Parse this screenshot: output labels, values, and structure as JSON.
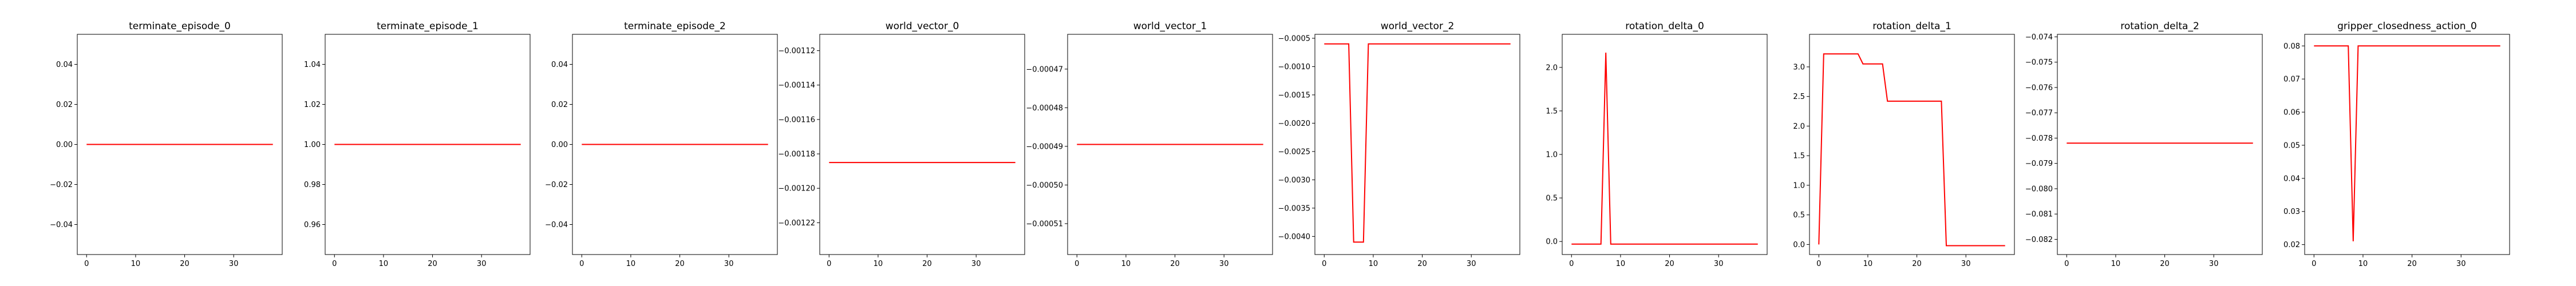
{
  "figure": {
    "line_color": "#ff0000",
    "axis_color": "#000000",
    "background": "#ffffff"
  },
  "chart_data": [
    {
      "type": "line",
      "title": "terminate_episode_0",
      "xlim": [
        -1.9,
        39.9
      ],
      "ylim": [
        -0.055,
        0.055
      ],
      "xticks": [
        0,
        10,
        20,
        30
      ],
      "xticklabels": [
        "0",
        "10",
        "20",
        "30"
      ],
      "yticks": [
        -0.04,
        -0.02,
        0.0,
        0.02,
        0.04
      ],
      "yticklabels": [
        "−0.04",
        "−0.02",
        "0.00",
        "0.02",
        "0.04"
      ],
      "x": [
        0,
        38
      ],
      "y": [
        0,
        0
      ]
    },
    {
      "type": "line",
      "title": "terminate_episode_1",
      "xlim": [
        -1.9,
        39.9
      ],
      "ylim": [
        0.945,
        1.055
      ],
      "xticks": [
        0,
        10,
        20,
        30
      ],
      "xticklabels": [
        "0",
        "10",
        "20",
        "30"
      ],
      "yticks": [
        0.96,
        0.98,
        1.0,
        1.02,
        1.04
      ],
      "yticklabels": [
        "0.96",
        "0.98",
        "1.00",
        "1.02",
        "1.04"
      ],
      "x": [
        0,
        38
      ],
      "y": [
        1,
        1
      ]
    },
    {
      "type": "line",
      "title": "terminate_episode_2",
      "xlim": [
        -1.9,
        39.9
      ],
      "ylim": [
        -0.055,
        0.055
      ],
      "xticks": [
        0,
        10,
        20,
        30
      ],
      "xticklabels": [
        "0",
        "10",
        "20",
        "30"
      ],
      "yticks": [
        -0.04,
        -0.02,
        0.0,
        0.02,
        0.04
      ],
      "yticklabels": [
        "−0.04",
        "−0.02",
        "0.00",
        "0.02",
        "0.04"
      ],
      "x": [
        0,
        38
      ],
      "y": [
        0,
        0
      ]
    },
    {
      "type": "line",
      "title": "world_vector_0",
      "xlim": [
        -1.9,
        39.9
      ],
      "ylim": [
        -0.0012385,
        -0.0011105
      ],
      "xticks": [
        0,
        10,
        20,
        30
      ],
      "xticklabels": [
        "0",
        "10",
        "20",
        "30"
      ],
      "yticks": [
        -0.00112,
        -0.00114,
        -0.00116,
        -0.00118,
        -0.0012,
        -0.00122
      ],
      "yticklabels": [
        "−0.00112",
        "−0.00114",
        "−0.00116",
        "−0.00118",
        "−0.00120",
        "−0.00122"
      ],
      "x": [
        0,
        38
      ],
      "y": [
        -0.001185,
        -0.001185
      ]
    },
    {
      "type": "line",
      "title": "world_vector_1",
      "xlim": [
        -1.9,
        39.9
      ],
      "ylim": [
        -0.000518,
        -0.000461
      ],
      "xticks": [
        0,
        10,
        20,
        30
      ],
      "xticklabels": [
        "0",
        "10",
        "20",
        "30"
      ],
      "yticks": [
        -0.00047,
        -0.00048,
        -0.00049,
        -0.0005,
        -0.00051
      ],
      "yticklabels": [
        "−0.00047",
        "−0.00048",
        "−0.00049",
        "−0.00050",
        "−0.00051"
      ],
      "x": [
        0,
        38
      ],
      "y": [
        -0.0004895,
        -0.0004895
      ]
    },
    {
      "type": "line",
      "title": "world_vector_2",
      "xlim": [
        -1.9,
        39.9
      ],
      "ylim": [
        -0.00432,
        -0.00043
      ],
      "xticks": [
        0,
        10,
        20,
        30
      ],
      "xticklabels": [
        "0",
        "10",
        "20",
        "30"
      ],
      "yticks": [
        -0.0005,
        -0.001,
        -0.0015,
        -0.002,
        -0.0025,
        -0.003,
        -0.0035,
        -0.004
      ],
      "yticklabels": [
        "−0.0005",
        "−0.0010",
        "−0.0015",
        "−0.0020",
        "−0.0025",
        "−0.0030",
        "−0.0035",
        "−0.0040"
      ],
      "x": [
        0,
        5,
        6,
        8,
        9,
        38
      ],
      "y": [
        -0.0006,
        -0.0006,
        -0.0041,
        -0.0041,
        -0.0006,
        -0.0006
      ]
    },
    {
      "type": "line",
      "title": "rotation_delta_0",
      "xlim": [
        -1.9,
        39.9
      ],
      "ylim": [
        -0.15,
        2.38
      ],
      "xticks": [
        0,
        10,
        20,
        30
      ],
      "xticklabels": [
        "0",
        "10",
        "20",
        "30"
      ],
      "yticks": [
        0.0,
        0.5,
        1.0,
        1.5,
        2.0
      ],
      "yticklabels": [
        "0.0",
        "0.5",
        "1.0",
        "1.5",
        "2.0"
      ],
      "x": [
        0,
        6,
        7,
        8,
        38
      ],
      "y": [
        -0.03,
        -0.03,
        2.17,
        -0.03,
        -0.03
      ]
    },
    {
      "type": "line",
      "title": "rotation_delta_1",
      "xlim": [
        -1.9,
        39.9
      ],
      "ylim": [
        -0.17,
        3.55
      ],
      "xticks": [
        0,
        10,
        20,
        30
      ],
      "xticklabels": [
        "0",
        "10",
        "20",
        "30"
      ],
      "yticks": [
        0.0,
        0.5,
        1.0,
        1.5,
        2.0,
        2.5,
        3.0
      ],
      "yticklabels": [
        "0.0",
        "0.5",
        "1.0",
        "1.5",
        "2.0",
        "2.5",
        "3.0"
      ],
      "x": [
        0,
        1,
        8,
        9,
        13,
        14,
        25,
        26,
        38
      ],
      "y": [
        0.0,
        3.22,
        3.22,
        3.05,
        3.05,
        2.42,
        2.42,
        -0.02,
        -0.02
      ]
    },
    {
      "type": "line",
      "title": "rotation_delta_2",
      "xlim": [
        -1.9,
        39.9
      ],
      "ylim": [
        -0.0826,
        -0.0739
      ],
      "xticks": [
        0,
        10,
        20,
        30
      ],
      "xticklabels": [
        "0",
        "10",
        "20",
        "30"
      ],
      "yticks": [
        -0.074,
        -0.075,
        -0.076,
        -0.077,
        -0.078,
        -0.079,
        -0.08,
        -0.081,
        -0.082
      ],
      "yticklabels": [
        "−0.074",
        "−0.075",
        "−0.076",
        "−0.077",
        "−0.078",
        "−0.079",
        "−0.080",
        "−0.081",
        "−0.082"
      ],
      "x": [
        0,
        38
      ],
      "y": [
        -0.0782,
        -0.0782
      ]
    },
    {
      "type": "line",
      "title": "gripper_closedness_action_0",
      "xlim": [
        -1.9,
        39.9
      ],
      "ylim": [
        0.017,
        0.0835
      ],
      "xticks": [
        0,
        10,
        20,
        30
      ],
      "xticklabels": [
        "0",
        "10",
        "20",
        "30"
      ],
      "yticks": [
        0.02,
        0.03,
        0.04,
        0.05,
        0.06,
        0.07,
        0.08
      ],
      "yticklabels": [
        "0.02",
        "0.03",
        "0.04",
        "0.05",
        "0.06",
        "0.07",
        "0.08"
      ],
      "x": [
        0,
        7,
        8,
        9,
        38
      ],
      "y": [
        0.08,
        0.08,
        0.021,
        0.08,
        0.08
      ]
    }
  ]
}
